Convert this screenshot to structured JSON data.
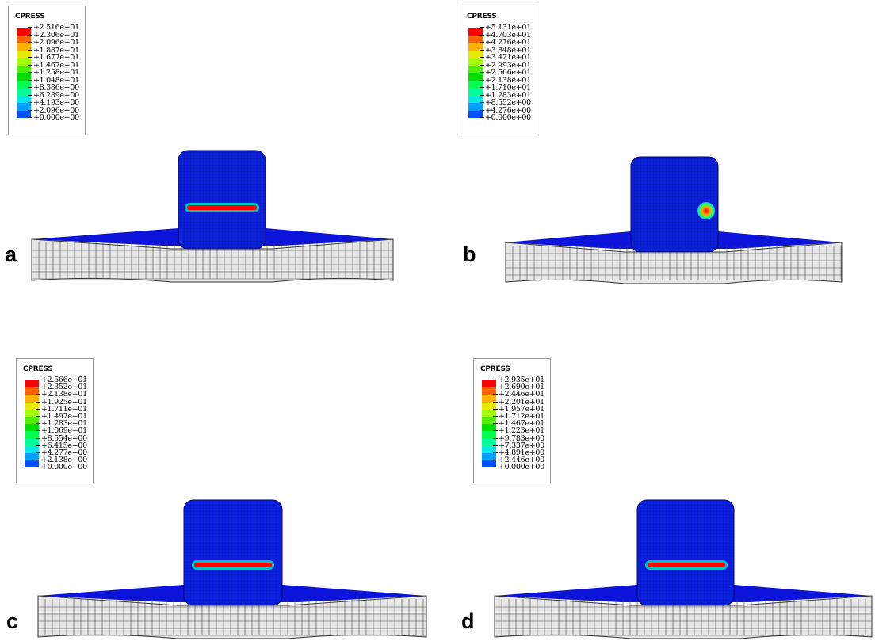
{
  "colormap": [
    "#0000ff",
    "#0050ff",
    "#00a0ff",
    "#00e8e8",
    "#00ff9a",
    "#00ff50",
    "#00e000",
    "#50f000",
    "#a0ff00",
    "#e8e800",
    "#ffb000",
    "#ff6000",
    "#ff0000"
  ],
  "panels": [
    {
      "letter": "a",
      "legend_title": "CPRESS",
      "ticks": [
        "+2.516e+01",
        "+2.306e+01",
        "+2.096e+01",
        "+1.887e+01",
        "+1.677e+01",
        "+1.467e+01",
        "+1.258e+01",
        "+1.048e+01",
        "+8.386e+00",
        "+6.289e+00",
        "+4.193e+00",
        "+2.096e+00",
        "+0.000e+00"
      ],
      "contact_shape": "strip"
    },
    {
      "letter": "b",
      "legend_title": "CPRESS",
      "ticks": [
        "+5.131e+01",
        "+4.703e+01",
        "+4.276e+01",
        "+3.848e+01",
        "+3.421e+01",
        "+2.993e+01",
        "+2.566e+01",
        "+2.138e+01",
        "+1.710e+01",
        "+1.283e+01",
        "+8.552e+00",
        "+4.276e+00",
        "+0.000e+00"
      ],
      "contact_shape": "spot"
    },
    {
      "letter": "c",
      "legend_title": "CPRESS",
      "ticks": [
        "+2.566e+01",
        "+2.352e+01",
        "+2.138e+01",
        "+1.925e+01",
        "+1.711e+01",
        "+1.497e+01",
        "+1.283e+01",
        "+1.069e+01",
        "+8.554e+00",
        "+6.415e+00",
        "+4.277e+00",
        "+2.138e+00",
        "+0.000e+00"
      ],
      "contact_shape": "strip"
    },
    {
      "letter": "d",
      "legend_title": "CPRESS",
      "ticks": [
        "+2.935e+01",
        "+2.690e+01",
        "+2.446e+01",
        "+2.201e+01",
        "+1.957e+01",
        "+1.712e+01",
        "+1.467e+01",
        "+1.223e+01",
        "+9.783e+00",
        "+7.337e+00",
        "+4.891e+00",
        "+2.446e+00",
        "+0.000e+00"
      ],
      "contact_shape": "strip"
    }
  ]
}
